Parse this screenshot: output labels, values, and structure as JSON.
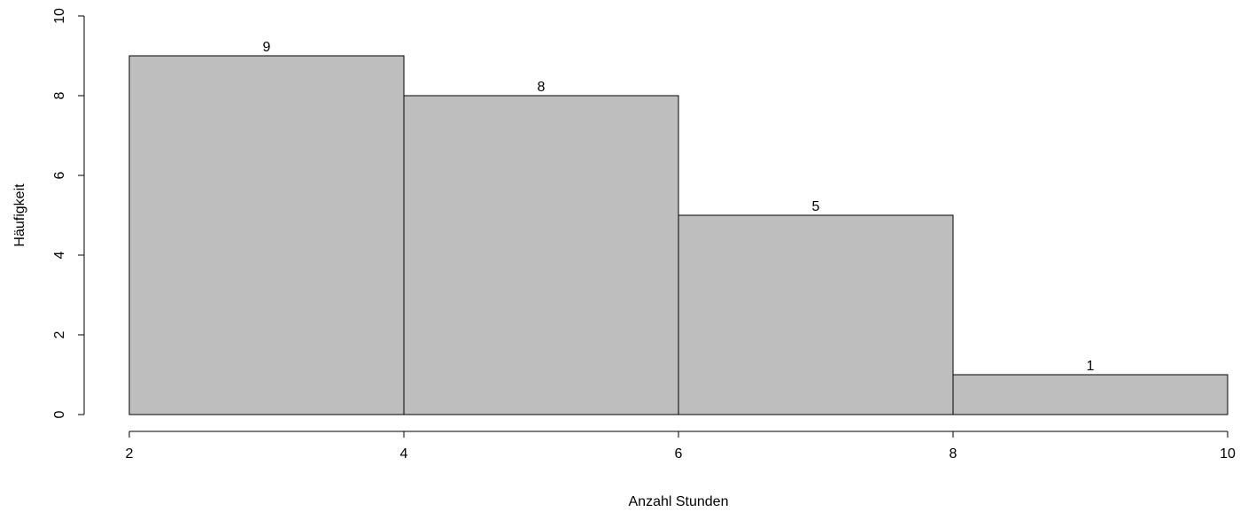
{
  "chart_data": {
    "type": "bar",
    "histogram": true,
    "bins": [
      {
        "from": 2,
        "to": 4,
        "count": 9
      },
      {
        "from": 4,
        "to": 6,
        "count": 8
      },
      {
        "from": 6,
        "to": 8,
        "count": 5
      },
      {
        "from": 8,
        "to": 10,
        "count": 1
      }
    ],
    "x_ticks": [
      2,
      4,
      6,
      8,
      10
    ],
    "y_ticks": [
      0,
      2,
      4,
      6,
      8,
      10
    ],
    "xlim": [
      2,
      10
    ],
    "ylim": [
      0,
      10
    ],
    "xlabel": "Anzahl Stunden",
    "ylabel": "Häufigkeit",
    "title": "",
    "grid": false,
    "bar_fill": "#bebebe",
    "bar_stroke": "#000000"
  }
}
